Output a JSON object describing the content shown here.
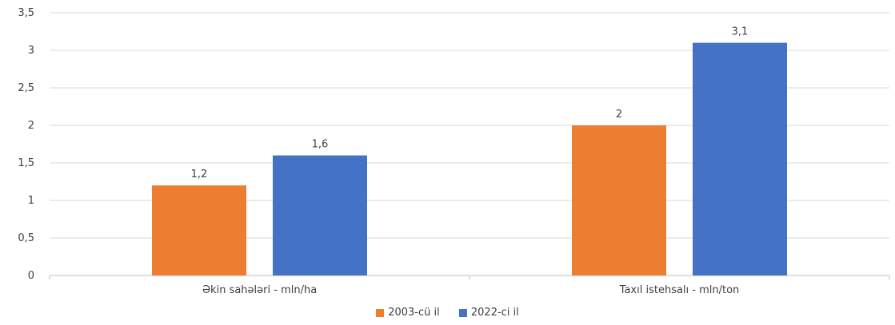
{
  "chart_data": {
    "type": "bar",
    "categories": [
      "Əkin sahələri - mln/ha",
      "Taxıl istehsalı - mln/ton"
    ],
    "series": [
      {
        "name": "2003-cü il",
        "values": [
          1.2,
          2
        ],
        "labels": [
          "1,2",
          "2"
        ],
        "color": "#ED7D31"
      },
      {
        "name": "2022-ci il",
        "values": [
          1.6,
          3.1
        ],
        "labels": [
          "1,6",
          "3,1"
        ],
        "color": "#4472C4"
      }
    ],
    "ylim": [
      0,
      3.5
    ],
    "yticks": [
      0,
      0.5,
      1,
      1.5,
      2,
      2.5,
      3,
      3.5
    ],
    "ytick_labels": [
      "0",
      "0,5",
      "1",
      "1,5",
      "2",
      "2,5",
      "3",
      "3,5"
    ],
    "grid": true,
    "legend_position": "bottom",
    "title": "",
    "xlabel": "",
    "ylabel": ""
  }
}
